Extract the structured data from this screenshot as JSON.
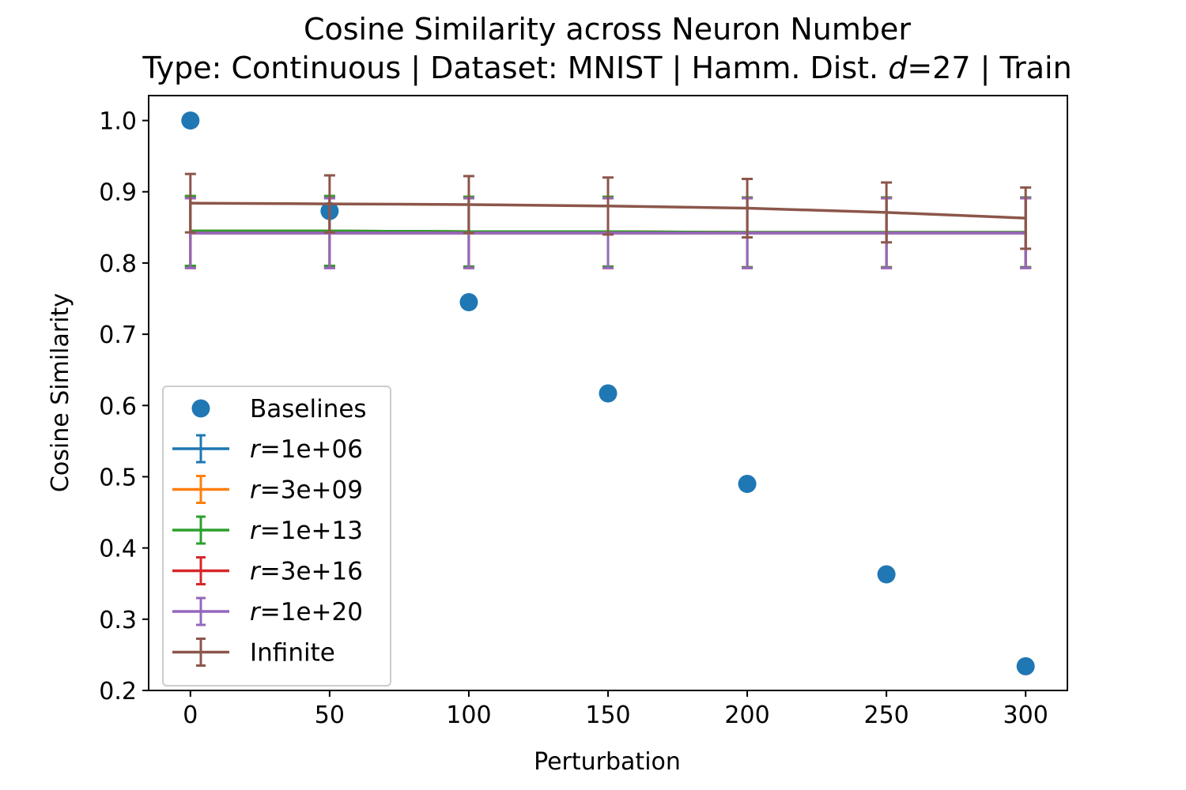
{
  "chart_data": {
    "type": "scatter",
    "title": "Cosine Similarity across Neuron Number",
    "subtitle_parts": [
      "Type: Continuous | Dataset: MNIST | Hamm. Dist. ",
      "d",
      "=27 | Train"
    ],
    "xlabel": "Perturbation",
    "ylabel": "Cosine Similarity",
    "xlim": [
      -15,
      315
    ],
    "ylim": [
      0.2,
      1.035
    ],
    "xticks": [
      0,
      50,
      100,
      150,
      200,
      250,
      300
    ],
    "xtick_labels": [
      "0",
      "50",
      "100",
      "150",
      "200",
      "250",
      "300"
    ],
    "yticks": [
      0.2,
      0.3,
      0.4,
      0.5,
      0.6,
      0.7,
      0.8,
      0.9,
      1.0
    ],
    "ytick_labels": [
      "0.2",
      "0.3",
      "0.4",
      "0.5",
      "0.6",
      "0.7",
      "0.8",
      "0.9",
      "1.0"
    ],
    "grid": false,
    "legend_position": "lower-left",
    "x": [
      0,
      50,
      100,
      150,
      200,
      250,
      300
    ],
    "baselines": {
      "name": "Baselines",
      "color": "#1f77b4",
      "values": [
        1.0,
        0.873,
        0.745,
        0.617,
        0.49,
        0.363,
        0.234
      ]
    },
    "series": [
      {
        "name_prefix": "r",
        "name_suffix": "=1e+06",
        "color": "#1f77b4",
        "values": [
          0.845,
          0.845,
          0.844,
          0.844,
          0.843,
          0.843,
          0.843
        ],
        "err": [
          0.049,
          0.049,
          0.049,
          0.049,
          0.049,
          0.049,
          0.049
        ]
      },
      {
        "name_prefix": "r",
        "name_suffix": "=3e+09",
        "color": "#ff7f0e",
        "values": [
          0.845,
          0.845,
          0.844,
          0.844,
          0.843,
          0.843,
          0.843
        ],
        "err": [
          0.049,
          0.049,
          0.049,
          0.049,
          0.049,
          0.049,
          0.049
        ]
      },
      {
        "name_prefix": "r",
        "name_suffix": "=1e+13",
        "color": "#2ca02c",
        "values": [
          0.845,
          0.845,
          0.844,
          0.844,
          0.843,
          0.843,
          0.843
        ],
        "err": [
          0.049,
          0.049,
          0.049,
          0.049,
          0.049,
          0.049,
          0.049
        ]
      },
      {
        "name_prefix": "r",
        "name_suffix": "=3e+16",
        "color": "#d62728",
        "values": [
          0.842,
          0.842,
          0.842,
          0.842,
          0.842,
          0.842,
          0.842
        ],
        "err": [
          0.049,
          0.049,
          0.049,
          0.049,
          0.049,
          0.049,
          0.049
        ]
      },
      {
        "name_prefix": "r",
        "name_suffix": "=1e+20",
        "color": "#9467bd",
        "values": [
          0.842,
          0.842,
          0.842,
          0.842,
          0.842,
          0.842,
          0.842
        ],
        "err": [
          0.049,
          0.049,
          0.049,
          0.049,
          0.049,
          0.049,
          0.049
        ]
      },
      {
        "name_prefix": "",
        "name_suffix": "Infinite",
        "color": "#8c564b",
        "values": [
          0.884,
          0.883,
          0.882,
          0.88,
          0.877,
          0.871,
          0.863
        ],
        "err": [
          0.041,
          0.04,
          0.04,
          0.04,
          0.041,
          0.042,
          0.043
        ]
      }
    ]
  }
}
